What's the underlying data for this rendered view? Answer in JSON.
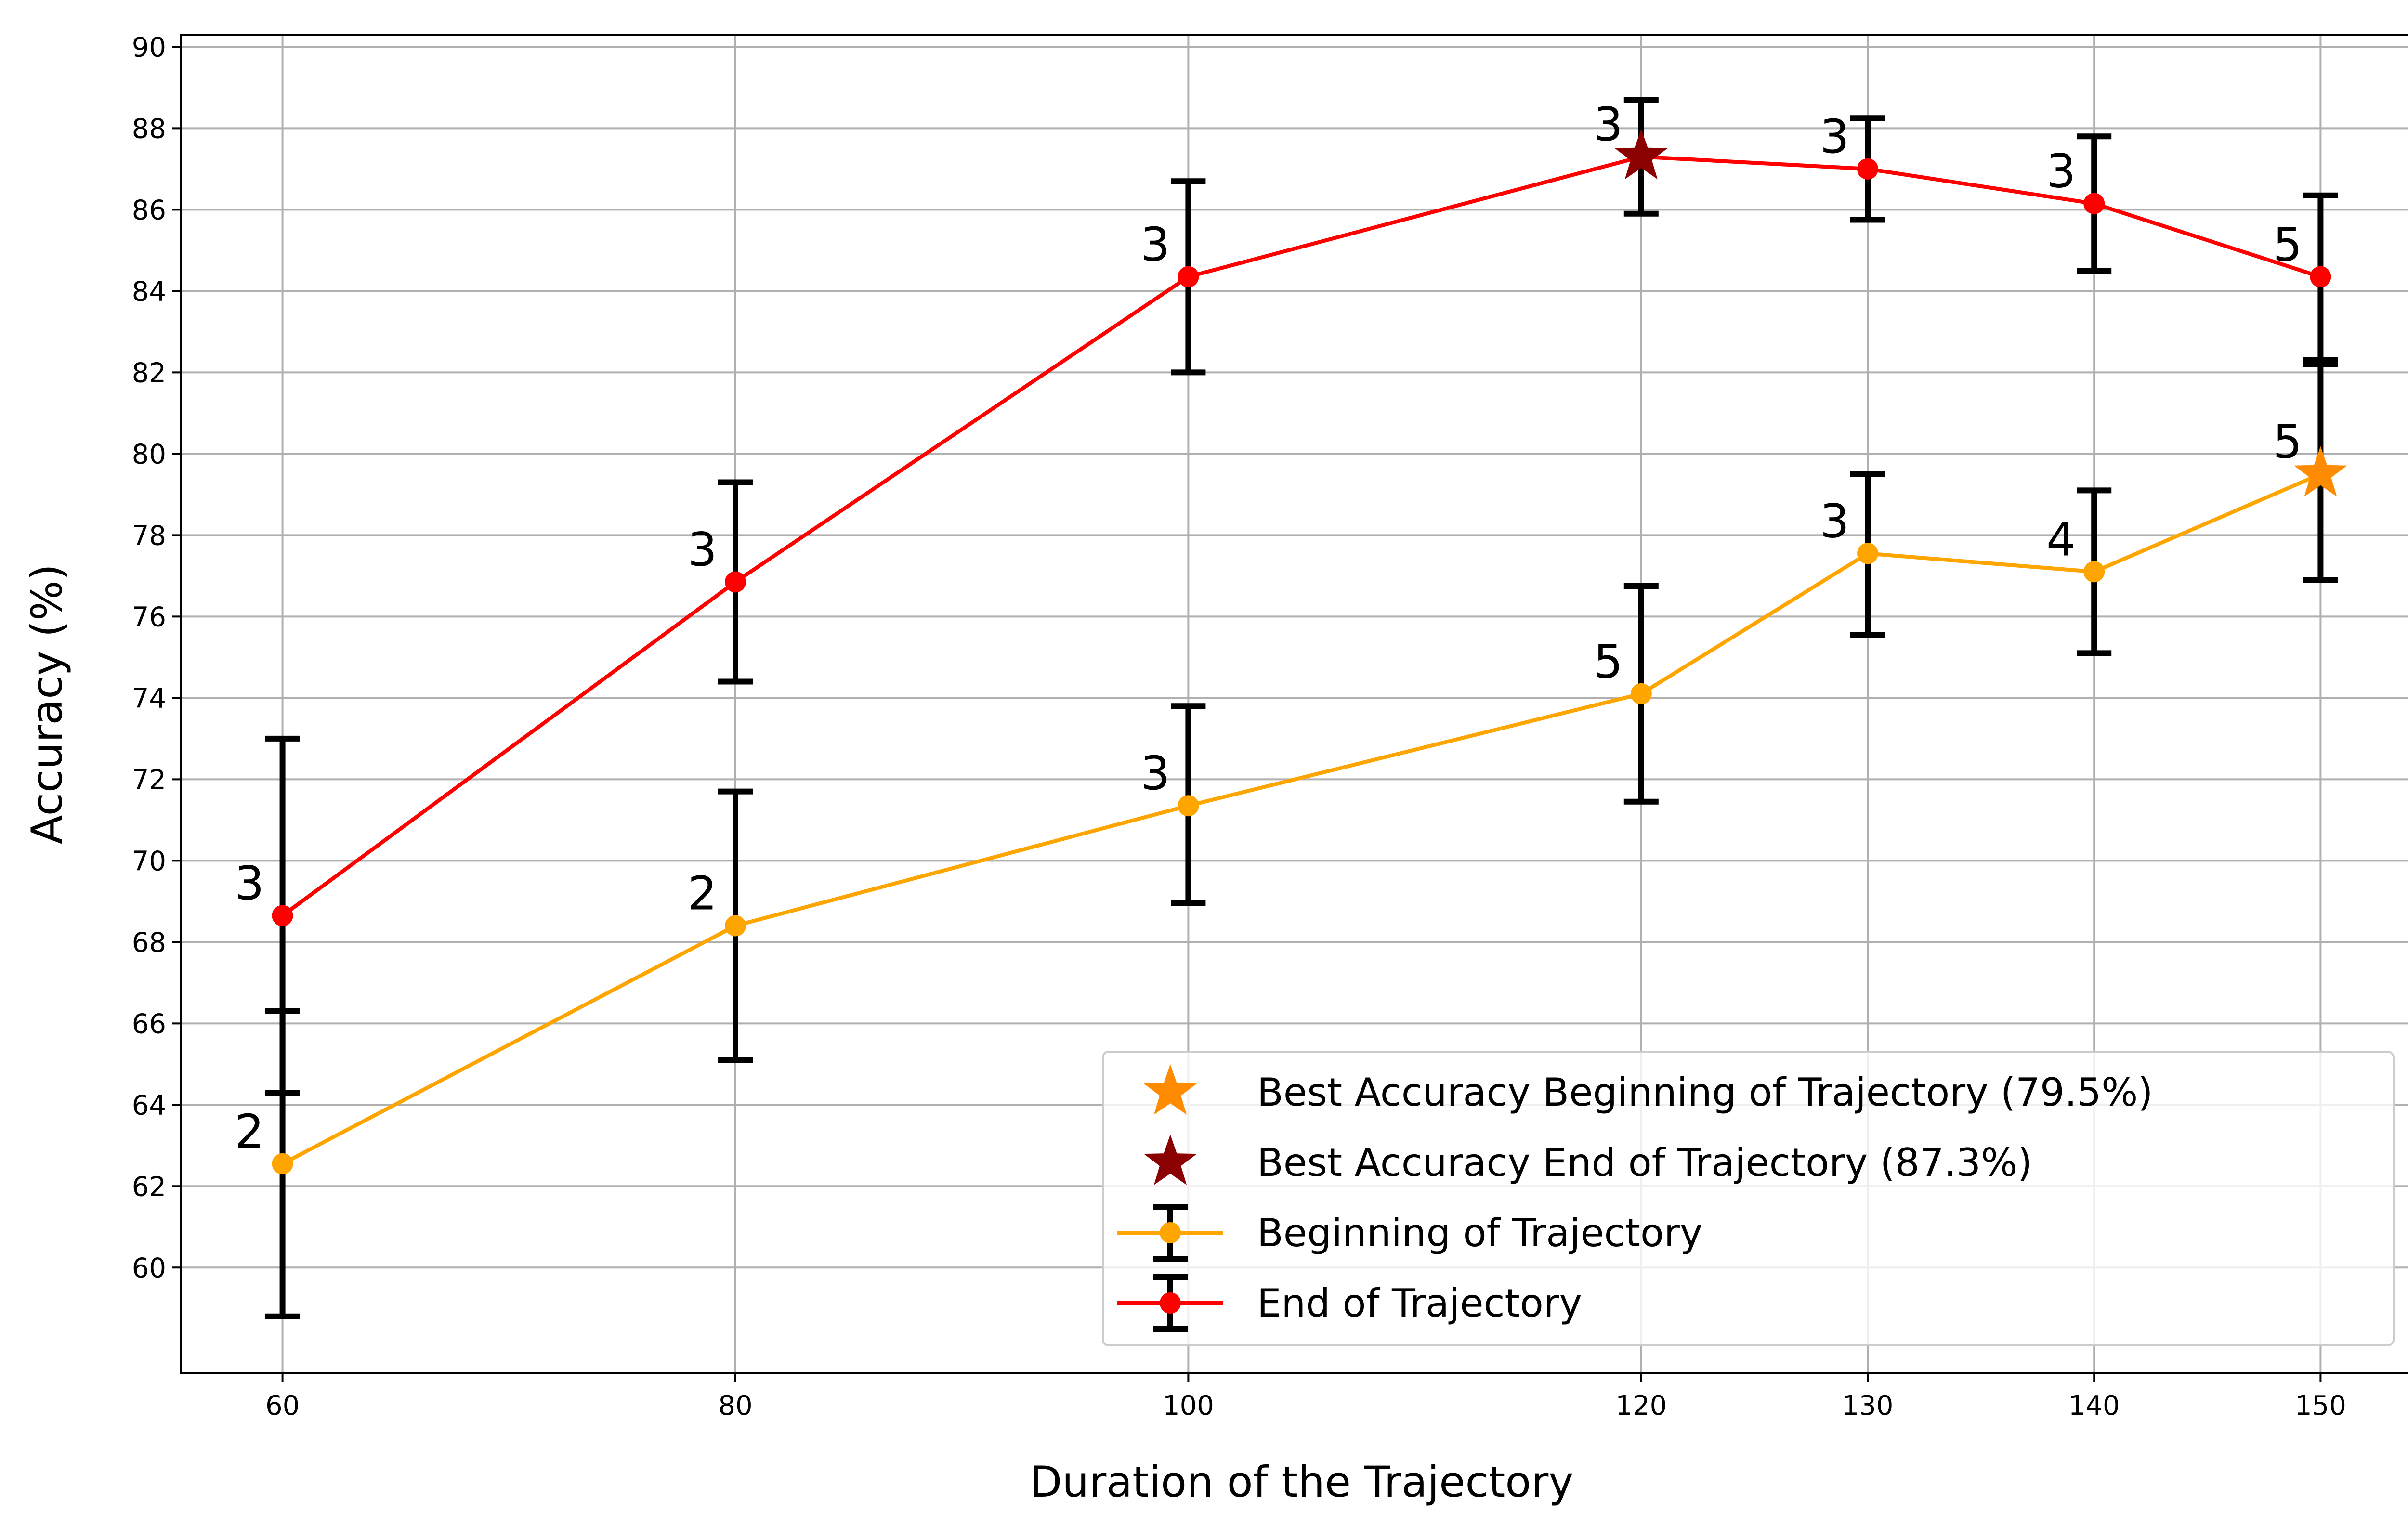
{
  "chart_data": {
    "type": "line",
    "x": [
      60,
      80,
      100,
      120,
      130,
      140,
      150
    ],
    "xticks": [
      "60",
      "80",
      "100",
      "120",
      "130",
      "140",
      "150"
    ],
    "xlim": [
      55.5,
      154.5
    ],
    "ylim": [
      57.4,
      90.3
    ],
    "yticks": [
      "60",
      "62",
      "64",
      "66",
      "68",
      "70",
      "72",
      "74",
      "76",
      "78",
      "80",
      "82",
      "84",
      "86",
      "88",
      "90"
    ],
    "xlabel": "Duration of the Trajectory",
    "ylabel": "Accuracy (%)",
    "grid": true,
    "legend_position": "lower-right",
    "series": [
      {
        "name": "Beginning of Trajectory",
        "color": "#FFA500",
        "values": [
          62.55,
          68.4,
          71.35,
          74.1,
          77.55,
          77.1,
          79.5
        ],
        "err_low": [
          58.8,
          65.1,
          68.95,
          71.45,
          75.55,
          75.1,
          76.9
        ],
        "err_high": [
          66.3,
          71.7,
          73.8,
          76.75,
          79.5,
          79.1,
          82.2
        ],
        "annotations": [
          "2",
          "2",
          "3",
          "5",
          "3",
          "4",
          "5"
        ]
      },
      {
        "name": "End of Trajectory",
        "color": "#FF0000",
        "values": [
          68.65,
          76.85,
          84.35,
          87.3,
          87.0,
          86.15,
          84.35
        ],
        "err_low": [
          64.3,
          74.4,
          82.0,
          85.9,
          85.75,
          84.5,
          82.3
        ],
        "err_high": [
          73.0,
          79.3,
          86.7,
          88.7,
          88.25,
          87.8,
          86.35
        ],
        "annotations": [
          "3",
          "3",
          "3",
          "3",
          "3",
          "3",
          "5"
        ]
      }
    ],
    "best_markers": [
      {
        "label": "Best Accuracy Beginning of Trajectory (79.5%)",
        "x": 150,
        "y": 79.5,
        "color": "#FF8C00"
      },
      {
        "label": "Best Accuracy End of Trajectory (87.3%)",
        "x": 120,
        "y": 87.3,
        "color": "#8B0000"
      }
    ],
    "error_bar_color": "#000000",
    "grid_color": "#B0B0B0"
  }
}
